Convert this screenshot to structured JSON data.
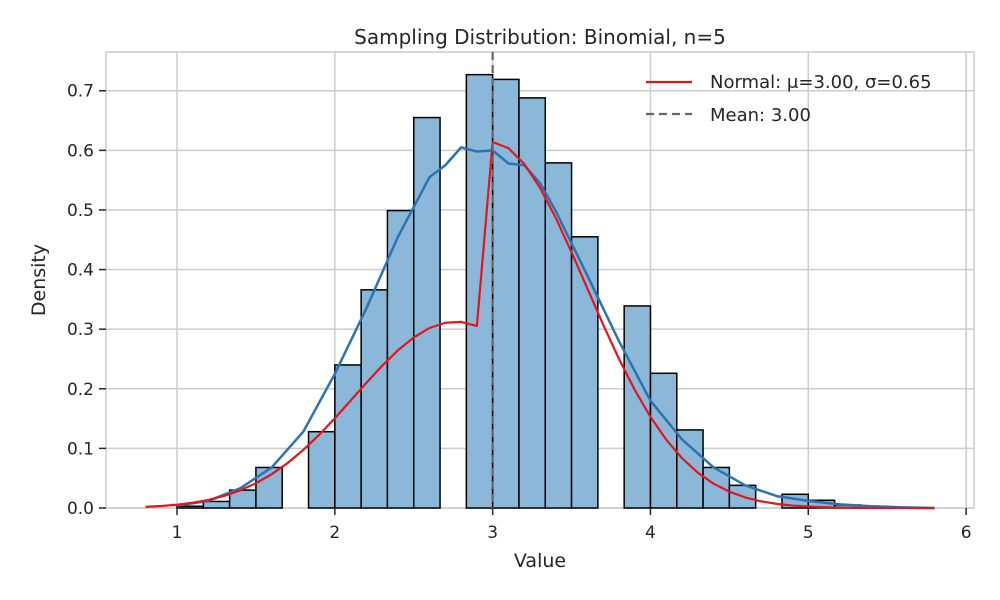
{
  "chart_data": {
    "type": "bar",
    "title": "Sampling Distribution: Binomial, n=5",
    "xlabel": "Value",
    "ylabel": "Density",
    "xlim": [
      0.55,
      6.05
    ],
    "ylim": [
      0,
      0.765
    ],
    "xticks": [
      1,
      2,
      3,
      4,
      5,
      6
    ],
    "yticks": [
      0.0,
      0.1,
      0.2,
      0.3,
      0.4,
      0.5,
      0.6,
      0.7
    ],
    "grid": true,
    "legend_position": "top-right",
    "bin_edges": [
      1.0,
      1.1667,
      1.3333,
      1.5,
      1.6667,
      1.8333,
      2.0,
      2.1667,
      2.3333,
      2.5,
      2.6667,
      2.8333,
      3.0,
      3.1667,
      3.3333,
      3.5,
      3.6667,
      3.8333,
      4.0,
      4.1667,
      4.3333,
      4.5,
      4.6667,
      4.8333,
      5.0,
      5.1667,
      5.3333,
      5.5,
      5.6667,
      5.8333
    ],
    "histogram_density": [
      0.003,
      0.011,
      0.03,
      0.068,
      0.0,
      0.128,
      0.24,
      0.366,
      0.499,
      0.655,
      0.0,
      0.727,
      0.719,
      0.688,
      0.579,
      0.455,
      0.0,
      0.339,
      0.226,
      0.131,
      0.068,
      0.038,
      0.0,
      0.023,
      0.013,
      0.005,
      0.003,
      0.0,
      0.0
    ],
    "bar_color": "#8bb8d9",
    "bar_edge_color": "#000000",
    "series": [
      {
        "name": "Normal: μ=3.00, σ=0.65",
        "type": "line",
        "color": "#e8141b",
        "x": [
          0.8,
          0.9,
          1.0,
          1.1,
          1.2,
          1.3,
          1.4,
          1.5,
          1.6,
          1.7,
          1.8,
          1.9,
          2.0,
          2.1,
          2.2,
          2.3,
          2.4,
          2.5,
          2.6,
          2.7,
          2.8,
          2.9,
          3.0,
          3.1,
          3.2,
          3.3,
          3.4,
          3.5,
          3.6,
          3.7,
          3.8,
          3.9,
          4.0,
          4.1,
          4.2,
          4.3,
          4.4,
          4.5,
          4.6,
          4.7,
          4.8,
          4.9,
          5.0,
          5.1,
          5.2,
          5.3,
          5.4,
          5.5,
          5.6,
          5.7,
          5.8
        ],
        "y": [
          0.0019,
          0.0033,
          0.0055,
          0.0088,
          0.0135,
          0.0204,
          0.0295,
          0.0415,
          0.0567,
          0.0753,
          0.0974,
          0.1226,
          0.1506,
          0.1801,
          0.21,
          0.2386,
          0.2646,
          0.2861,
          0.302,
          0.3108,
          0.3122,
          0.3055,
          0.614,
          0.6037,
          0.5773,
          0.5372,
          0.4866,
          0.429,
          0.3683,
          0.3078,
          0.2504,
          0.1983,
          0.1528,
          0.1146,
          0.0835,
          0.0592,
          0.0408,
          0.0274,
          0.0178,
          0.0113,
          0.0069,
          0.0041,
          0.0024,
          0.0013,
          0.0007,
          0.0004,
          0.0002,
          0.0001,
          0.0001,
          0.0,
          0.0
        ]
      },
      {
        "name": "",
        "type": "line",
        "color": "#2a74b4",
        "x": [
          1.0,
          1.2,
          1.4,
          1.6,
          1.8,
          2.0,
          2.2,
          2.4,
          2.6,
          2.7,
          2.8,
          2.9,
          3.0,
          3.1,
          3.2,
          3.3,
          3.4,
          3.6,
          3.8,
          4.0,
          4.2,
          4.4,
          4.6,
          4.8,
          5.0,
          5.2,
          5.4,
          5.6,
          5.8
        ],
        "y": [
          0.004,
          0.012,
          0.033,
          0.068,
          0.128,
          0.225,
          0.335,
          0.455,
          0.555,
          0.575,
          0.605,
          0.598,
          0.6,
          0.578,
          0.575,
          0.545,
          0.498,
          0.39,
          0.28,
          0.18,
          0.115,
          0.068,
          0.038,
          0.02,
          0.012,
          0.006,
          0.003,
          0.001,
          0.0
        ]
      },
      {
        "name": "Mean: 3.00",
        "type": "vline",
        "color": "#666666",
        "x": 3.0
      }
    ]
  }
}
